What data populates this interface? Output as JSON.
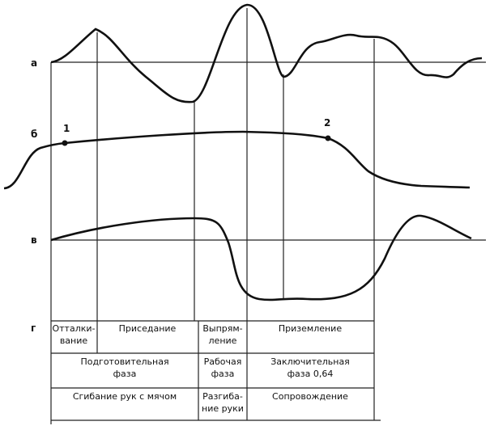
{
  "labels": {
    "a": "а",
    "b": "б",
    "v": "в",
    "g": "г",
    "p1": "1",
    "p2": "2"
  },
  "table": {
    "rows": [
      [
        [
          "Отталки-",
          "вание"
        ],
        [
          "Приседание"
        ],
        [
          "Выпрям-",
          "ление"
        ],
        [
          "Приземление"
        ]
      ],
      [
        [
          "Подготовительная",
          "фаза"
        ],
        [
          "Рабочая",
          "фаза"
        ],
        [
          "Заключительная",
          "фаза 0,64"
        ]
      ],
      [
        [
          "Сгибание рук с мячом"
        ],
        [
          "Разгиба-",
          "ние руки"
        ],
        [
          "Сопровождение"
        ]
      ]
    ]
  }
}
